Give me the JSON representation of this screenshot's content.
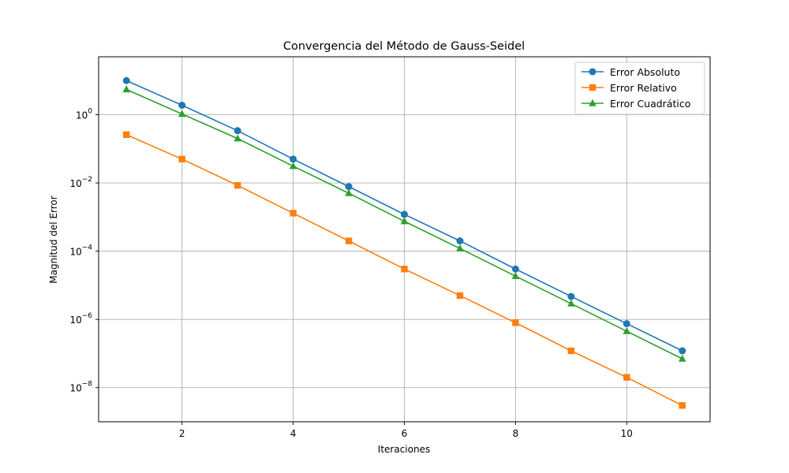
{
  "chart_data": {
    "type": "line",
    "title": "Convergencia del Método de Gauss-Seidel",
    "xlabel": "Iteraciones",
    "ylabel": "Magnitud del Error",
    "yscale": "log",
    "xlim": [
      0.5,
      11.5
    ],
    "ylim": [
      1e-09,
      50
    ],
    "grid": true,
    "legend_position": "top-right",
    "x_ticks": [
      2,
      4,
      6,
      8,
      10
    ],
    "y_ticks": [
      {
        "value": 1,
        "base": "10",
        "exp": "0"
      },
      {
        "value": 0.01,
        "base": "10",
        "exp": "−2"
      },
      {
        "value": 0.0001,
        "base": "10",
        "exp": "−4"
      },
      {
        "value": 1e-06,
        "base": "10",
        "exp": "−6"
      },
      {
        "value": 1e-08,
        "base": "10",
        "exp": "−8"
      }
    ],
    "x": [
      1,
      2,
      3,
      4,
      5,
      6,
      7,
      8,
      9,
      10,
      11
    ],
    "series": [
      {
        "name": "Error Absoluto",
        "color": "#1f77b4",
        "marker": "circle",
        "values": [
          10,
          1.9,
          0.34,
          0.05,
          0.0078,
          0.0012,
          0.0002,
          3e-05,
          4.7e-06,
          7.5e-07,
          1.2e-07
        ]
      },
      {
        "name": "Error Relativo",
        "color": "#ff7f0e",
        "marker": "square",
        "values": [
          0.26,
          0.05,
          0.0085,
          0.0013,
          0.0002,
          3e-05,
          5e-06,
          8e-07,
          1.2e-07,
          2e-08,
          3e-09
        ]
      },
      {
        "name": "Error Cuadrático",
        "color": "#2ca02c",
        "marker": "triangle",
        "values": [
          5.5,
          1.05,
          0.2,
          0.031,
          0.005,
          0.00075,
          0.00012,
          1.85e-05,
          2.9e-06,
          4.5e-07,
          7e-08
        ]
      }
    ]
  }
}
